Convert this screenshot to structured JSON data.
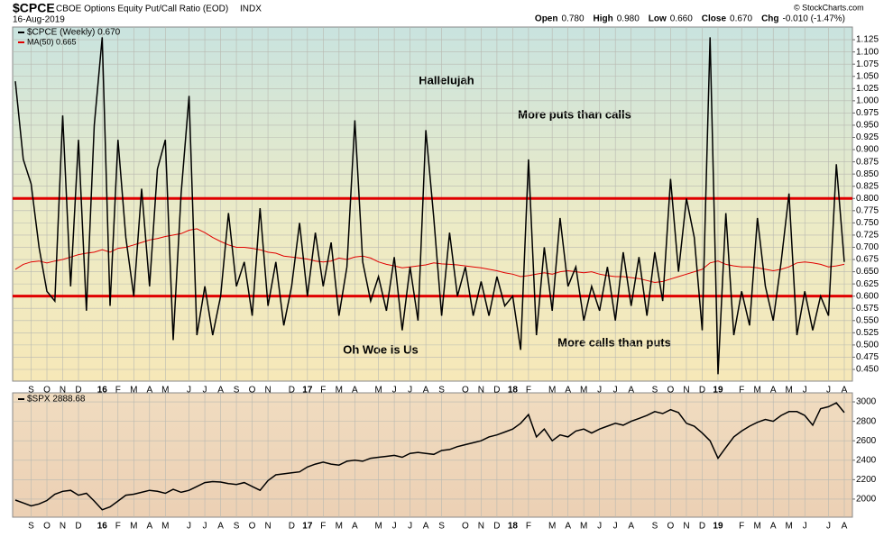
{
  "header": {
    "symbol": "$CPCE",
    "name": "CBOE Options Equity Put/Call Ratio (EOD)",
    "exchange": "INDX",
    "date": "16-Aug-2019",
    "quote": [
      {
        "label": "Open",
        "value": "0.780"
      },
      {
        "label": "High",
        "value": "0.980"
      },
      {
        "label": "Low",
        "value": "0.660"
      },
      {
        "label": "Close",
        "value": "0.670"
      },
      {
        "label": "Chg",
        "value": "-0.010 (-1.47%)"
      }
    ],
    "copyright": "© StockCharts.com"
  },
  "chart_data": [
    {
      "type": "line",
      "categories": [
        null,
        null,
        "S",
        null,
        "O",
        null,
        "N",
        null,
        "D",
        null,
        null,
        "16",
        null,
        "F",
        null,
        "M",
        null,
        "A",
        null,
        "M",
        null,
        null,
        "J",
        null,
        "J",
        null,
        "A",
        null,
        "S",
        null,
        "O",
        null,
        "N",
        null,
        null,
        "D",
        null,
        "17",
        null,
        "F",
        null,
        "M",
        null,
        "A",
        null,
        null,
        "M",
        null,
        "J",
        null,
        "J",
        null,
        "A",
        null,
        "S",
        null,
        null,
        "O",
        null,
        "N",
        null,
        "D",
        null,
        "18",
        null,
        "F",
        null,
        null,
        "M",
        null,
        "A",
        null,
        "M",
        null,
        "J",
        null,
        "J",
        null,
        "A",
        null,
        null,
        "S",
        null,
        "O",
        null,
        "N",
        null,
        "D",
        null,
        "19",
        null,
        null,
        "F",
        null,
        "M",
        null,
        "A",
        null,
        "M",
        null,
        "J",
        null,
        null,
        "J",
        null,
        "A"
      ],
      "series": [
        {
          "name": "$CPCE (Weekly) 0.670",
          "color": "#000000",
          "values": [
            1.04,
            0.88,
            0.83,
            0.7,
            0.61,
            0.59,
            0.97,
            0.62,
            0.92,
            0.57,
            0.95,
            1.13,
            0.58,
            0.92,
            0.72,
            0.6,
            0.82,
            0.62,
            0.86,
            0.92,
            0.51,
            0.81,
            1.01,
            0.52,
            0.62,
            0.52,
            0.6,
            0.77,
            0.62,
            0.67,
            0.56,
            0.78,
            0.58,
            0.67,
            0.54,
            0.62,
            0.75,
            0.6,
            0.73,
            0.62,
            0.71,
            0.56,
            0.66,
            0.96,
            0.67,
            0.59,
            0.64,
            0.57,
            0.68,
            0.53,
            0.66,
            0.55,
            0.94,
            0.76,
            0.56,
            0.73,
            0.6,
            0.66,
            0.56,
            0.63,
            0.56,
            0.64,
            0.58,
            0.6,
            0.49,
            0.88,
            0.52,
            0.7,
            0.57,
            0.76,
            0.62,
            0.66,
            0.55,
            0.62,
            0.57,
            0.66,
            0.55,
            0.69,
            0.58,
            0.68,
            0.56,
            0.69,
            0.59,
            0.84,
            0.65,
            0.8,
            0.72,
            0.53,
            1.13,
            0.44,
            0.77,
            0.52,
            0.61,
            0.54,
            0.76,
            0.62,
            0.55,
            0.67,
            0.81,
            0.52,
            0.61,
            0.53,
            0.6,
            0.56,
            0.87,
            0.67
          ]
        },
        {
          "name": "MA(50) 0.665",
          "color": "#e00000",
          "values": [
            0.655,
            0.665,
            0.67,
            0.672,
            0.668,
            0.672,
            0.675,
            0.68,
            0.685,
            0.688,
            0.69,
            0.695,
            0.69,
            0.698,
            0.7,
            0.705,
            0.71,
            0.715,
            0.718,
            0.722,
            0.725,
            0.728,
            0.735,
            0.738,
            0.73,
            0.72,
            0.712,
            0.705,
            0.7,
            0.7,
            0.698,
            0.695,
            0.69,
            0.688,
            0.682,
            0.68,
            0.678,
            0.676,
            0.672,
            0.67,
            0.672,
            0.678,
            0.675,
            0.68,
            0.682,
            0.678,
            0.67,
            0.665,
            0.662,
            0.658,
            0.66,
            0.662,
            0.664,
            0.668,
            0.666,
            0.665,
            0.664,
            0.662,
            0.66,
            0.658,
            0.655,
            0.652,
            0.648,
            0.645,
            0.64,
            0.642,
            0.645,
            0.648,
            0.645,
            0.65,
            0.652,
            0.65,
            0.648,
            0.65,
            0.645,
            0.642,
            0.64,
            0.64,
            0.638,
            0.636,
            0.632,
            0.628,
            0.63,
            0.635,
            0.64,
            0.645,
            0.65,
            0.655,
            0.668,
            0.672,
            0.665,
            0.662,
            0.66,
            0.66,
            0.658,
            0.655,
            0.652,
            0.655,
            0.66,
            0.668,
            0.67,
            0.668,
            0.665,
            0.66,
            0.662,
            0.665
          ]
        }
      ],
      "ylim": [
        0.426,
        1.151
      ],
      "yticks": [
        {
          "value": 0.45,
          "label": "0.450"
        },
        {
          "value": 0.475,
          "label": "0.475"
        },
        {
          "value": 0.5,
          "label": "0.500"
        },
        {
          "value": 0.525,
          "label": "0.525"
        },
        {
          "value": 0.55,
          "label": "0.550"
        },
        {
          "value": 0.575,
          "label": "0.575"
        },
        {
          "value": 0.6,
          "label": "0.600"
        },
        {
          "value": 0.625,
          "label": "0.625"
        },
        {
          "value": 0.65,
          "label": "0.650"
        },
        {
          "value": 0.675,
          "label": "0.675"
        },
        {
          "value": 0.7,
          "label": "0.700"
        },
        {
          "value": 0.725,
          "label": "0.725"
        },
        {
          "value": 0.75,
          "label": "0.750"
        },
        {
          "value": 0.775,
          "label": "0.775"
        },
        {
          "value": 0.8,
          "label": "0.800"
        },
        {
          "value": 0.825,
          "label": "0.825"
        },
        {
          "value": 0.85,
          "label": "0.850"
        },
        {
          "value": 0.875,
          "label": "0.875"
        },
        {
          "value": 0.9,
          "label": "0.900"
        },
        {
          "value": 0.925,
          "label": "0.925"
        },
        {
          "value": 0.95,
          "label": "0.950"
        },
        {
          "value": 0.975,
          "label": "0.975"
        },
        {
          "value": 1.0,
          "label": "1.000"
        },
        {
          "value": 1.025,
          "label": "1.025"
        },
        {
          "value": 1.05,
          "label": "1.050"
        },
        {
          "value": 1.075,
          "label": "1.075"
        },
        {
          "value": 1.1,
          "label": "1.100"
        },
        {
          "value": 1.125,
          "label": "1.125"
        }
      ],
      "hlines": [
        {
          "value": 0.8,
          "color": "#e00000"
        },
        {
          "value": 0.6,
          "color": "#e00000"
        }
      ],
      "annotations": [
        {
          "text": "Hallelujah",
          "color": "#e00000"
        },
        {
          "text": "More puts than calls",
          "color": "#000000"
        },
        {
          "text": "Oh Woe is Us",
          "color": "#e00000"
        },
        {
          "text": "More calls than puts",
          "color": "#000000"
        }
      ],
      "grid": true
    },
    {
      "type": "line",
      "categories": [
        null,
        null,
        "S",
        null,
        "O",
        null,
        "N",
        null,
        "D",
        null,
        null,
        "16",
        null,
        "F",
        null,
        "M",
        null,
        "A",
        null,
        "M",
        null,
        null,
        "J",
        null,
        "J",
        null,
        "A",
        null,
        "S",
        null,
        "O",
        null,
        "N",
        null,
        null,
        "D",
        null,
        "17",
        null,
        "F",
        null,
        "M",
        null,
        "A",
        null,
        null,
        "M",
        null,
        "J",
        null,
        "J",
        null,
        "A",
        null,
        "S",
        null,
        null,
        "O",
        null,
        "N",
        null,
        "D",
        null,
        "18",
        null,
        "F",
        null,
        null,
        "M",
        null,
        "A",
        null,
        "M",
        null,
        "J",
        null,
        "J",
        null,
        "A",
        null,
        null,
        "S",
        null,
        "O",
        null,
        "N",
        null,
        "D",
        null,
        "19",
        null,
        null,
        "F",
        null,
        "M",
        null,
        "A",
        null,
        "M",
        null,
        "J",
        null,
        null,
        "J",
        null,
        "A"
      ],
      "series": [
        {
          "name": "$SPX 2888.68",
          "color": "#000000",
          "values": [
            1990,
            1960,
            1930,
            1950,
            1985,
            2050,
            2080,
            2090,
            2040,
            2060,
            1980,
            1890,
            1920,
            1980,
            2040,
            2050,
            2070,
            2090,
            2080,
            2060,
            2100,
            2070,
            2090,
            2130,
            2170,
            2180,
            2175,
            2160,
            2150,
            2170,
            2130,
            2090,
            2190,
            2250,
            2260,
            2270,
            2280,
            2330,
            2360,
            2380,
            2360,
            2350,
            2390,
            2400,
            2390,
            2420,
            2430,
            2440,
            2450,
            2430,
            2470,
            2480,
            2470,
            2460,
            2500,
            2510,
            2540,
            2560,
            2580,
            2600,
            2640,
            2660,
            2690,
            2720,
            2780,
            2870,
            2640,
            2720,
            2600,
            2660,
            2640,
            2700,
            2720,
            2680,
            2720,
            2750,
            2780,
            2760,
            2800,
            2830,
            2860,
            2900,
            2880,
            2920,
            2890,
            2780,
            2750,
            2680,
            2600,
            2420,
            2530,
            2640,
            2700,
            2750,
            2790,
            2820,
            2800,
            2860,
            2900,
            2900,
            2860,
            2760,
            2930,
            2950,
            2990,
            2890
          ]
        }
      ],
      "ylim": [
        1814,
        3093
      ],
      "yticks": [
        2000,
        2200,
        2400,
        2600,
        2800,
        3000
      ],
      "grid": true
    }
  ]
}
